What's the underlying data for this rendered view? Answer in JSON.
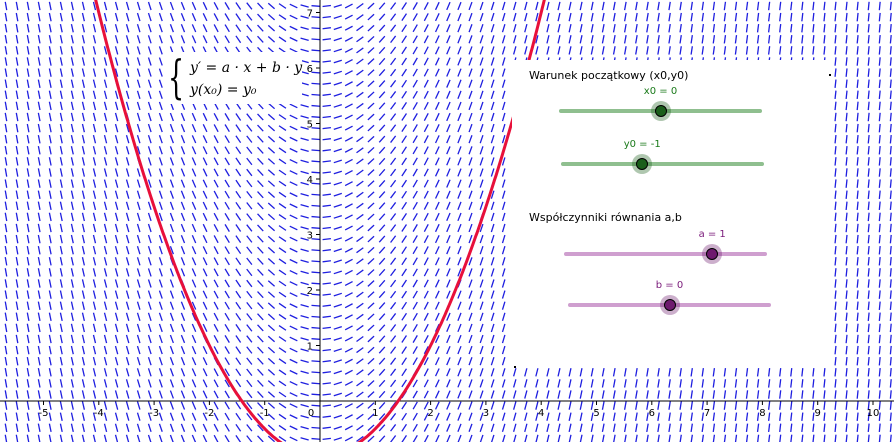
{
  "equation": {
    "line1": "y′ = a · x + b · y",
    "line2": "y(x₀) = y₀"
  },
  "panel": {
    "initial_title": "Warunek początkowy (x0,y0)",
    "coeff_title": "Współczynniki równania a,b",
    "sliders": [
      {
        "id": "x0",
        "label": "x0 = 0",
        "fraction": 0.5,
        "color": "#1a7a1a",
        "track": "#8fbf8f",
        "knob": "#1a5e1a"
      },
      {
        "id": "y0",
        "label": "y0 = -1",
        "fraction": 0.4,
        "color": "#1a7a1a",
        "track": "#8fbf8f",
        "knob": "#1a5e1a"
      },
      {
        "id": "a",
        "label": "a = 1",
        "fraction": 0.73,
        "color": "#7a1a7a",
        "track": "#cf9fcf",
        "knob": "#6e1a6e"
      },
      {
        "id": "b",
        "label": "b = 0",
        "fraction": 0.5,
        "color": "#7a1a7a",
        "track": "#cf9fcf",
        "knob": "#6e1a6e"
      }
    ]
  },
  "chart_data": {
    "type": "line",
    "title": "",
    "xlabel": "",
    "ylabel": "",
    "xlim": [
      -5.8,
      10.3
    ],
    "ylim": [
      -0.7,
      7.3
    ],
    "x_ticks": [
      -5,
      -4,
      -3,
      -2,
      -1,
      0,
      1,
      2,
      3,
      4,
      5,
      6,
      7,
      8,
      9,
      10
    ],
    "y_ticks": [
      1,
      2,
      3,
      4,
      5,
      6,
      7
    ],
    "x_tick_labels": [
      "-5",
      "-4",
      "-3",
      "-2",
      "-1",
      "0",
      "1",
      "2",
      "3",
      "4",
      "5",
      "6",
      "7",
      "8",
      "9",
      "10"
    ],
    "y_tick_labels": [
      "1",
      "2",
      "3",
      "4",
      "5",
      "6",
      "7"
    ],
    "slope_field": {
      "a": 1,
      "b": 0,
      "color": "#1f1fe0",
      "dashed": true
    },
    "series": [
      {
        "name": "",
        "formula": "y = x^2/2 - 1",
        "color": "#e8103a"
      }
    ],
    "grid": false
  }
}
